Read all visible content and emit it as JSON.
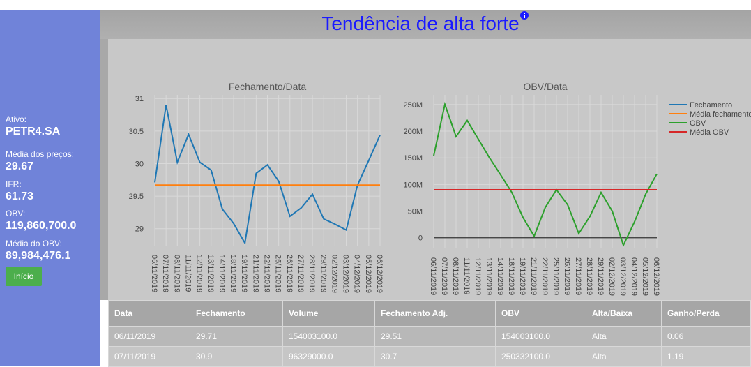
{
  "header": {
    "title": "Tendência de alta forte"
  },
  "sidebar": {
    "items": [
      {
        "label": "Ativo:",
        "value": "PETR4.SA"
      },
      {
        "label": "Média dos preços:",
        "value": "29.67"
      },
      {
        "label": "IFR:",
        "value": "61.73"
      },
      {
        "label": "OBV:",
        "value": "119,860,700.0"
      },
      {
        "label": "Média do OBV:",
        "value": "89,984,476.1"
      }
    ],
    "button": "Início"
  },
  "chart_data": [
    {
      "type": "line",
      "title": "Fechamento/Data",
      "categories": [
        "06/11/2019",
        "07/11/2019",
        "08/11/2019",
        "11/11/2019",
        "12/11/2019",
        "13/11/2019",
        "14/11/2019",
        "18/11/2019",
        "19/11/2019",
        "21/11/2019",
        "22/11/2019",
        "25/11/2019",
        "26/11/2019",
        "27/11/2019",
        "28/11/2019",
        "29/11/2019",
        "02/12/2019",
        "03/12/2019",
        "04/12/2019",
        "05/12/2019",
        "06/12/2019"
      ],
      "series": [
        {
          "name": "Fechamento",
          "color": "#1f77b4",
          "values": [
            29.71,
            30.9,
            30.02,
            30.45,
            30.02,
            29.9,
            29.3,
            29.08,
            28.78,
            29.85,
            29.98,
            29.73,
            29.19,
            29.32,
            29.53,
            29.15,
            29.07,
            28.98,
            29.67,
            30.05,
            30.44
          ]
        },
        {
          "name": "Média fechamento",
          "color": "#ff7f0e",
          "value": 29.67
        }
      ],
      "ylim": [
        28.74,
        31.12
      ],
      "yticks": [
        29,
        29.5,
        30,
        30.5,
        31
      ],
      "grid": true
    },
    {
      "type": "line",
      "title": "OBV/Data",
      "categories": [
        "06/11/2019",
        "07/11/2019",
        "08/11/2019",
        "11/11/2019",
        "12/11/2019",
        "13/11/2019",
        "14/11/2019",
        "18/11/2019",
        "19/11/2019",
        "21/11/2019",
        "22/11/2019",
        "25/11/2019",
        "26/11/2019",
        "27/11/2019",
        "28/11/2019",
        "29/11/2019",
        "02/12/2019",
        "03/12/2019",
        "04/12/2019",
        "05/12/2019",
        "06/12/2019"
      ],
      "series": [
        {
          "name": "OBV",
          "color": "#2ca02c",
          "values": [
            154003100,
            250332100,
            190000000,
            220000000,
            185000000,
            150000000,
            118000000,
            85000000,
            38000000,
            3000000,
            57000000,
            90000000,
            62000000,
            8000000,
            40000000,
            85000000,
            50000000,
            -14000000,
            30000000,
            82000000,
            119860700
          ]
        },
        {
          "name": "Média OBV",
          "color": "#d62728",
          "value": 89984476.1
        }
      ],
      "ylim": [
        -20000000,
        276000000
      ],
      "yticks": [
        0,
        {
          "value": 50000000,
          "label": "50M"
        },
        {
          "value": 100000000,
          "label": "100M"
        },
        {
          "value": 150000000,
          "label": "150M"
        },
        {
          "value": 200000000,
          "label": "200M"
        },
        {
          "value": 250000000,
          "label": "250M"
        }
      ],
      "grid": true,
      "legend": "right"
    }
  ],
  "table": {
    "columns": [
      "Data",
      "Fechamento",
      "Volume",
      "Fechamento Adj.",
      "OBV",
      "Alta/Baixa",
      "Ganho/Perda"
    ],
    "rows": [
      [
        "06/11/2019",
        "29.71",
        "154003100.0",
        "29.51",
        "154003100.0",
        "Alta",
        "0.06"
      ],
      [
        "07/11/2019",
        "30.9",
        "96329000.0",
        "30.7",
        "250332100.0",
        "Alta",
        "1.19"
      ]
    ]
  }
}
